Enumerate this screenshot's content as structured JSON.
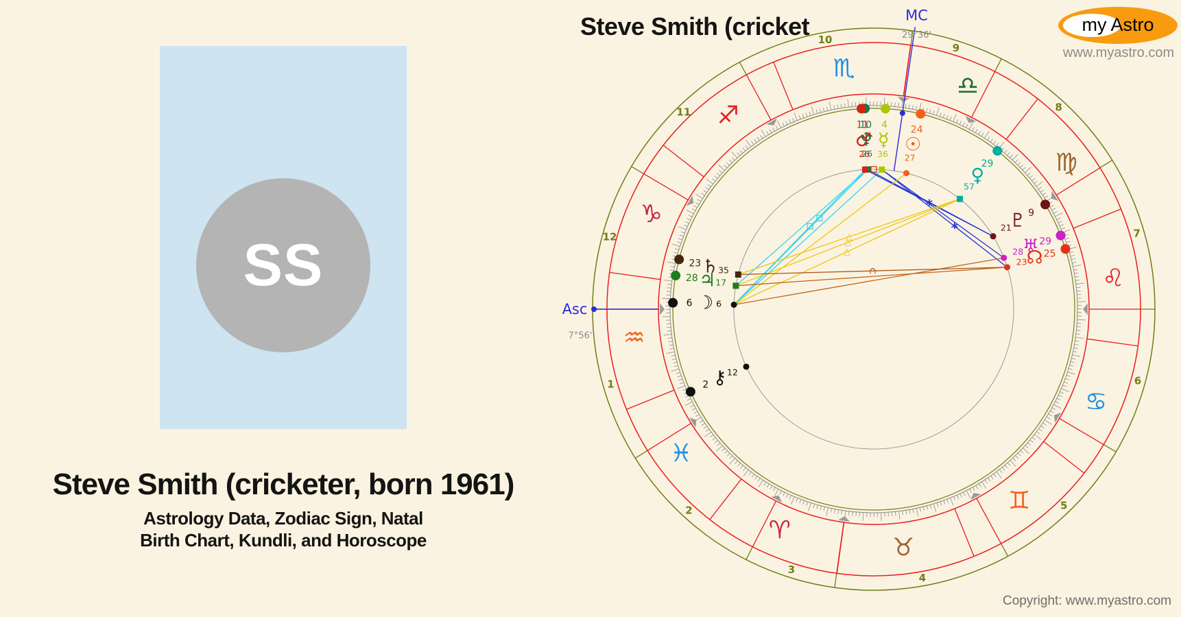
{
  "page": {
    "copyright": "Copyright: www.myastro.com"
  },
  "profile_card": {
    "initials": "SS"
  },
  "heading": {
    "title": "Steve Smith (cricketer, born 1961)",
    "subtitle_line1": "Astrology Data, Zodiac Sign, Natal",
    "subtitle_line2": "Birth Chart, Kundli, and Horoscope"
  },
  "logo": {
    "my": "my",
    "astro": "Astro",
    "website": "www.myastro.com"
  },
  "chart": {
    "title": "Steve Smith (cricket",
    "angles": {
      "mc_label": "MC",
      "mc_degree": "29°36'",
      "asc_label": "Asc",
      "asc_degree": "7°56'"
    },
    "house_numbers": [
      "1",
      "2",
      "3",
      "4",
      "5",
      "6",
      "7",
      "8",
      "9",
      "10",
      "11",
      "12"
    ],
    "signs": [
      {
        "name": "aries",
        "glyph": "♈",
        "color": "#c4293d"
      },
      {
        "name": "taurus",
        "glyph": "♉",
        "color": "#9c6633"
      },
      {
        "name": "gemini",
        "glyph": "♊",
        "color": "#f4621f"
      },
      {
        "name": "cancer",
        "glyph": "♋",
        "color": "#2090e8"
      },
      {
        "name": "leo",
        "glyph": "♌",
        "color": "#e42025"
      },
      {
        "name": "virgo",
        "glyph": "♍",
        "color": "#9c6633"
      },
      {
        "name": "libra",
        "glyph": "♎",
        "color": "#1e6f2e"
      },
      {
        "name": "scorpio",
        "glyph": "♏",
        "color": "#2090e8"
      },
      {
        "name": "sagittarius",
        "glyph": "♐",
        "color": "#e42025"
      },
      {
        "name": "capricorn",
        "glyph": "♑",
        "color": "#c4293d"
      },
      {
        "name": "aquarius",
        "glyph": "♒",
        "color": "#f4621f"
      },
      {
        "name": "pisces",
        "glyph": "♓",
        "color": "#2090e8"
      }
    ],
    "planets": [
      {
        "name": "neptune",
        "glyph": "♆",
        "color": "#0f7a50",
        "sign": "scorpio",
        "deg": "10",
        "min": "26",
        "marker": "square"
      },
      {
        "name": "mars",
        "glyph": "♂",
        "color": "#d42310",
        "sign": "scorpio",
        "deg": "11",
        "min": "26",
        "marker": "square"
      },
      {
        "name": "mercury",
        "glyph": "☿",
        "color": "#aac800",
        "sign": "scorpio",
        "deg": "4",
        "min": "36",
        "marker": "square"
      },
      {
        "name": "sun",
        "glyph": "☉",
        "color": "#f2601c",
        "sign": "libra",
        "deg": "24",
        "min": "27",
        "marker": "dot"
      },
      {
        "name": "venus",
        "glyph": "♀",
        "color": "#00ad9f",
        "sign": "virgo",
        "deg": "29",
        "min": "57",
        "marker": "square"
      },
      {
        "name": "pluto",
        "glyph": "♇",
        "color": "#6e1212",
        "sign": "virgo",
        "deg": "9",
        "min": "21",
        "marker": "dot"
      },
      {
        "name": "uranus",
        "glyph": "♅",
        "color": "#cb1fcb",
        "sign": "leo",
        "deg": "29",
        "min": "28",
        "marker": "dot"
      },
      {
        "name": "node",
        "glyph": "☊",
        "color": "#e6301c",
        "sign": "leo",
        "deg": "25",
        "min": "23",
        "marker": "dot"
      },
      {
        "name": "saturn",
        "glyph": "♄",
        "color": "#43270b",
        "sign": "capricorn",
        "deg": "23",
        "min": "35",
        "marker": "square"
      },
      {
        "name": "jupiter",
        "glyph": "♃",
        "color": "#1e7d1e",
        "sign": "capricorn",
        "deg": "28",
        "min": "17",
        "marker": "square"
      },
      {
        "name": "moon",
        "glyph": "☽",
        "color": "#101010",
        "sign": "aquarius",
        "deg": "6",
        "min": "6",
        "marker": "dot"
      },
      {
        "name": "chiron",
        "glyph": "⚷",
        "color": "#101010",
        "sign": "pisces",
        "deg": "2",
        "min": "12",
        "marker": "dot"
      }
    ],
    "aspects": [
      {
        "from": "moon",
        "to": "mercury",
        "color": "#2fd5ef"
      },
      {
        "from": "moon",
        "to": "mars",
        "color": "#2fd5ef",
        "glyph": "square",
        "t": 0.58
      },
      {
        "from": "moon",
        "to": "neptune",
        "color": "#2fd5ef",
        "glyph": "square",
        "t": 0.64
      },
      {
        "from": "jupiter",
        "to": "neptune",
        "color": "#2fd5ef"
      },
      {
        "from": "mars",
        "to": "pluto",
        "color": "#2236d1",
        "glyph": "star",
        "t": 0.5
      },
      {
        "from": "neptune",
        "to": "pluto",
        "color": "#2236d1"
      },
      {
        "from": "mercury",
        "to": "uranus",
        "color": "#2236d1"
      },
      {
        "from": "mercury",
        "to": "node",
        "color": "#2236d1",
        "glyph": "star",
        "t": 0.58
      },
      {
        "from": "saturn",
        "to": "venus",
        "color": "#eec513",
        "glyph": "triangle",
        "t": 0.5
      },
      {
        "from": "jupiter",
        "to": "venus",
        "color": "#eec513",
        "glyph": "triangle",
        "t": 0.5
      },
      {
        "from": "moon",
        "to": "venus",
        "color": "#eec513",
        "glyph": "triangle",
        "t": 0.5
      },
      {
        "from": "moon",
        "to": "sun",
        "color": "#eec513"
      },
      {
        "from": "moon",
        "to": "uranus",
        "color": "#c0661c"
      },
      {
        "from": "saturn",
        "to": "node",
        "color": "#a8581a",
        "glyph": "quincunx",
        "t": 0.5
      },
      {
        "from": "jupiter",
        "to": "node",
        "color": "#c0661c"
      }
    ],
    "palette": {
      "ring_olive": "#6e7f16",
      "ring_red": "#ea1c22",
      "tick_gray": "#8c8c8c",
      "aspect_circle": "#999999",
      "angle_blue": "#2b2bdb",
      "degree_gray": "#8a8a8a"
    }
  },
  "chart_data": {
    "type": "other",
    "subtype": "natal_wheel",
    "title": "Steve Smith (cricket",
    "ascendant": "Aquarius 7°56'",
    "midheaven": "Libra 29°36'",
    "positions": [
      {
        "body": "Sun",
        "sign": "Libra",
        "degree": 24,
        "minute": 27
      },
      {
        "body": "Moon",
        "sign": "Aquarius",
        "degree": 6,
        "minute": 6
      },
      {
        "body": "Mercury",
        "sign": "Scorpio",
        "degree": 4,
        "minute": 36
      },
      {
        "body": "Venus",
        "sign": "Virgo",
        "degree": 29,
        "minute": 57
      },
      {
        "body": "Mars",
        "sign": "Scorpio",
        "degree": 11,
        "minute": 26
      },
      {
        "body": "Jupiter",
        "sign": "Capricorn",
        "degree": 28,
        "minute": 17
      },
      {
        "body": "Saturn",
        "sign": "Capricorn",
        "degree": 23,
        "minute": 35
      },
      {
        "body": "Uranus",
        "sign": "Leo",
        "degree": 29,
        "minute": 28
      },
      {
        "body": "Neptune",
        "sign": "Scorpio",
        "degree": 10,
        "minute": 26
      },
      {
        "body": "Pluto",
        "sign": "Virgo",
        "degree": 9,
        "minute": 21
      },
      {
        "body": "Node",
        "sign": "Leo",
        "degree": 25,
        "minute": 23
      },
      {
        "body": "Chiron",
        "sign": "Pisces",
        "degree": 2,
        "minute": 12
      }
    ]
  }
}
